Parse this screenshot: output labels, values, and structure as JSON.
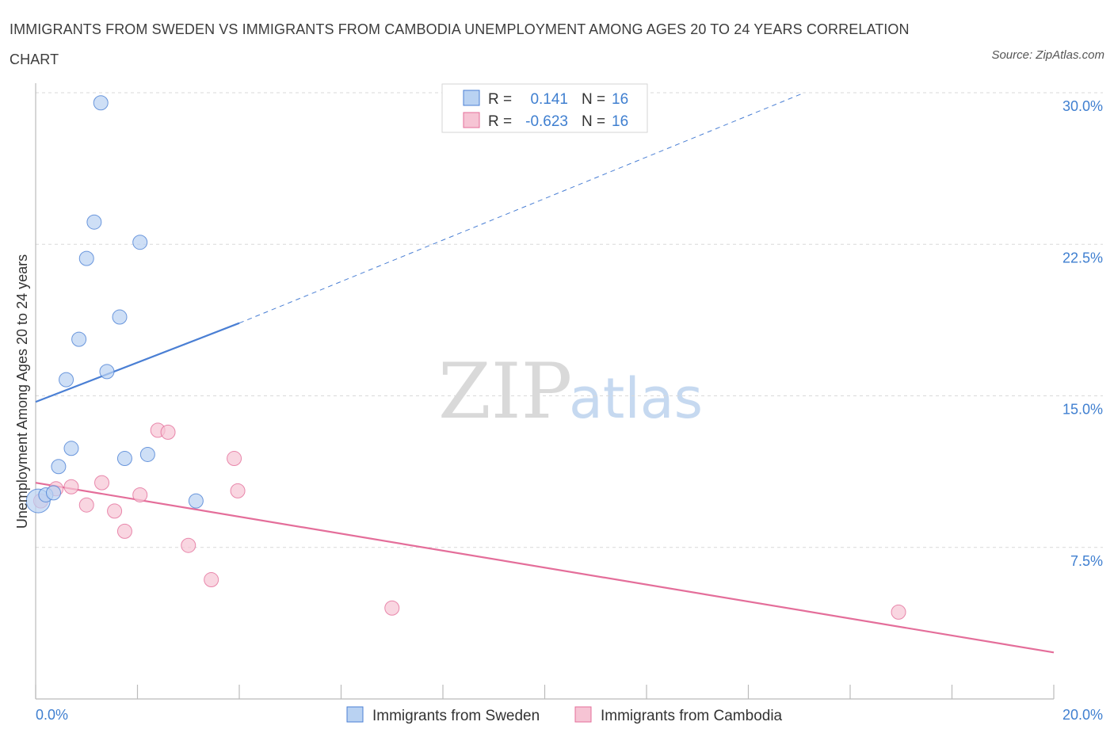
{
  "title": "IMMIGRANTS FROM SWEDEN VS IMMIGRANTS FROM CAMBODIA UNEMPLOYMENT AMONG AGES 20 TO 24 YEARS CORRELATION CHART",
  "source": "Source: ZipAtlas.com",
  "watermark": {
    "zip": "ZIP",
    "atlas": "atlas"
  },
  "colors": {
    "sweden": "#4a7fd4",
    "sweden_fill": "#b9d2f2",
    "cambodia": "#e46e9a",
    "cambodia_fill": "#f6c4d4",
    "tick_text": "#3f7fd0",
    "grid": "#d9d9d9"
  },
  "legend": {
    "rows": [
      {
        "r_label": "R =",
        "r_value": "0.141",
        "n_label": "N =",
        "n_value": "16"
      },
      {
        "r_label": "R =",
        "r_value": "-0.623",
        "n_label": "N =",
        "n_value": "16"
      }
    ]
  },
  "chart_data": {
    "type": "scatter",
    "title": "IMMIGRANTS FROM SWEDEN VS IMMIGRANTS FROM CAMBODIA UNEMPLOYMENT AMONG AGES 20 TO 24 YEARS CORRELATION CHART",
    "xlabel": "",
    "ylabel": "Unemployment Among Ages 20 to 24 years",
    "xlim": [
      0,
      20
    ],
    "ylim": [
      0,
      30
    ],
    "x_tick_labels": [
      "0.0%",
      "20.0%"
    ],
    "y_ticks": [
      7.5,
      15.0,
      22.5,
      30.0
    ],
    "y_tick_labels": [
      "7.5%",
      "15.0%",
      "22.5%",
      "30.0%"
    ],
    "grid": true,
    "series": [
      {
        "name": "Immigrants from Sweden",
        "color": "#4a7fd4",
        "points": [
          {
            "x": 0.05,
            "y": 9.8
          },
          {
            "x": 0.2,
            "y": 10.1
          },
          {
            "x": 0.35,
            "y": 10.2
          },
          {
            "x": 0.45,
            "y": 11.5
          },
          {
            "x": 0.6,
            "y": 15.8
          },
          {
            "x": 0.7,
            "y": 12.4
          },
          {
            "x": 0.85,
            "y": 17.8
          },
          {
            "x": 1.0,
            "y": 21.8
          },
          {
            "x": 1.15,
            "y": 23.6
          },
          {
            "x": 1.28,
            "y": 29.5
          },
          {
            "x": 1.4,
            "y": 16.2
          },
          {
            "x": 1.65,
            "y": 18.9
          },
          {
            "x": 1.75,
            "y": 11.9
          },
          {
            "x": 2.05,
            "y": 22.6
          },
          {
            "x": 2.2,
            "y": 12.1
          },
          {
            "x": 3.15,
            "y": 9.8
          }
        ],
        "trend": {
          "x0": 0,
          "y0": 14.7,
          "x1": 4.0,
          "y1": 18.6,
          "dashed_to_x": 15.1,
          "dashed_to_y": 30.0
        }
      },
      {
        "name": "Immigrants from Cambodia",
        "color": "#e46e9a",
        "points": [
          {
            "x": 0.1,
            "y": 9.8
          },
          {
            "x": 0.4,
            "y": 10.4
          },
          {
            "x": 0.7,
            "y": 10.5
          },
          {
            "x": 1.0,
            "y": 9.6
          },
          {
            "x": 1.3,
            "y": 10.7
          },
          {
            "x": 1.55,
            "y": 9.3
          },
          {
            "x": 1.75,
            "y": 8.3
          },
          {
            "x": 2.05,
            "y": 10.1
          },
          {
            "x": 2.4,
            "y": 13.3
          },
          {
            "x": 2.6,
            "y": 13.2
          },
          {
            "x": 3.0,
            "y": 7.6
          },
          {
            "x": 3.45,
            "y": 5.9
          },
          {
            "x": 3.9,
            "y": 11.9
          },
          {
            "x": 3.97,
            "y": 10.3
          },
          {
            "x": 7.0,
            "y": 4.5
          },
          {
            "x": 16.95,
            "y": 4.3
          }
        ],
        "trend": {
          "x0": 0,
          "y0": 10.7,
          "x1": 20.0,
          "y1": 2.3
        }
      }
    ]
  }
}
